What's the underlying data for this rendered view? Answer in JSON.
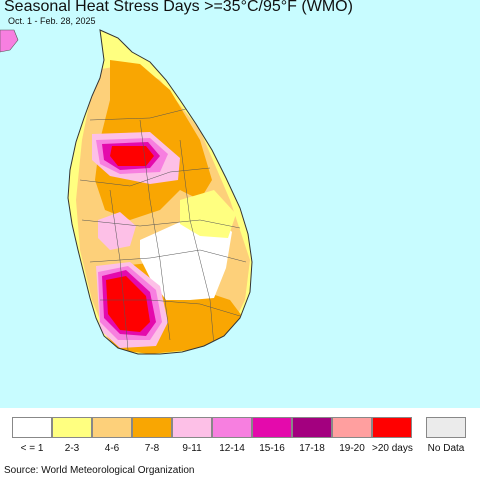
{
  "title": "Seasonal Heat Stress Days >=35°C/95°F (WMO)",
  "subtitle": "Oct. 1 - Feb. 28, 2025",
  "colors": {
    "ocean": "#c8fcff",
    "land_outside": "#ffffff",
    "border": "#555555"
  },
  "legend": {
    "categories": [
      {
        "label": "< = 1",
        "color": "#ffffff"
      },
      {
        "label": "2-3",
        "color": "#ffff80"
      },
      {
        "label": "4-6",
        "color": "#fdd07a"
      },
      {
        "label": "7-8",
        "color": "#f9a602"
      },
      {
        "label": "9-11",
        "color": "#fdc0e7"
      },
      {
        "label": "12-14",
        "color": "#f77fe0"
      },
      {
        "label": "15-16",
        "color": "#e40aac"
      },
      {
        "label": "17-18",
        "color": "#a3007f"
      },
      {
        "label": "19-20",
        "color": "#ff9f9f"
      },
      {
        "label": ">20 days",
        "color": "#ff0000"
      }
    ],
    "no_data": {
      "label": "No Data",
      "color": "#ebebeb"
    }
  },
  "source": "Source: World Meteorological Organization"
}
